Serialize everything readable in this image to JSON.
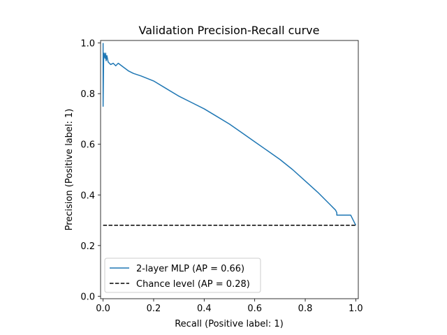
{
  "chart_data": {
    "type": "line",
    "title": "Validation Precision-Recall curve",
    "xlabel": "Recall (Positive label: 1)",
    "ylabel": "Precision (Positive label: 1)",
    "xlim": [
      -0.01,
      1.01
    ],
    "ylim": [
      -0.01,
      1.01
    ],
    "xticks": [
      "0.0",
      "0.2",
      "0.4",
      "0.6",
      "0.8",
      "1.0"
    ],
    "yticks": [
      "0.0",
      "0.2",
      "0.4",
      "0.6",
      "0.8",
      "1.0"
    ],
    "grid": false,
    "legend_position": "lower-left",
    "series": [
      {
        "name": "2-layer MLP (AP = 0.66)",
        "color": "#1f77b4",
        "style": "solid",
        "x": [
          0.0,
          0.0,
          0.002,
          0.004,
          0.006,
          0.008,
          0.01,
          0.012,
          0.015,
          0.02,
          0.025,
          0.03,
          0.04,
          0.05,
          0.06,
          0.08,
          0.1,
          0.12,
          0.15,
          0.2,
          0.25,
          0.3,
          0.35,
          0.4,
          0.45,
          0.5,
          0.55,
          0.6,
          0.65,
          0.7,
          0.75,
          0.8,
          0.85,
          0.88,
          0.9,
          0.91,
          0.92,
          0.925,
          0.925,
          0.95,
          0.98,
          0.99,
          1.0
        ],
        "y": [
          1.0,
          0.75,
          0.93,
          0.96,
          0.95,
          0.94,
          0.96,
          0.93,
          0.95,
          0.925,
          0.92,
          0.915,
          0.92,
          0.91,
          0.92,
          0.905,
          0.89,
          0.88,
          0.87,
          0.85,
          0.82,
          0.79,
          0.765,
          0.74,
          0.71,
          0.68,
          0.645,
          0.61,
          0.575,
          0.54,
          0.5,
          0.455,
          0.41,
          0.38,
          0.36,
          0.35,
          0.34,
          0.33,
          0.32,
          0.32,
          0.32,
          0.3,
          0.28
        ]
      },
      {
        "name": "Chance level (AP = 0.28)",
        "color": "#000000",
        "style": "dashed",
        "x": [
          0.0,
          1.0
        ],
        "y": [
          0.28,
          0.28
        ]
      }
    ]
  }
}
